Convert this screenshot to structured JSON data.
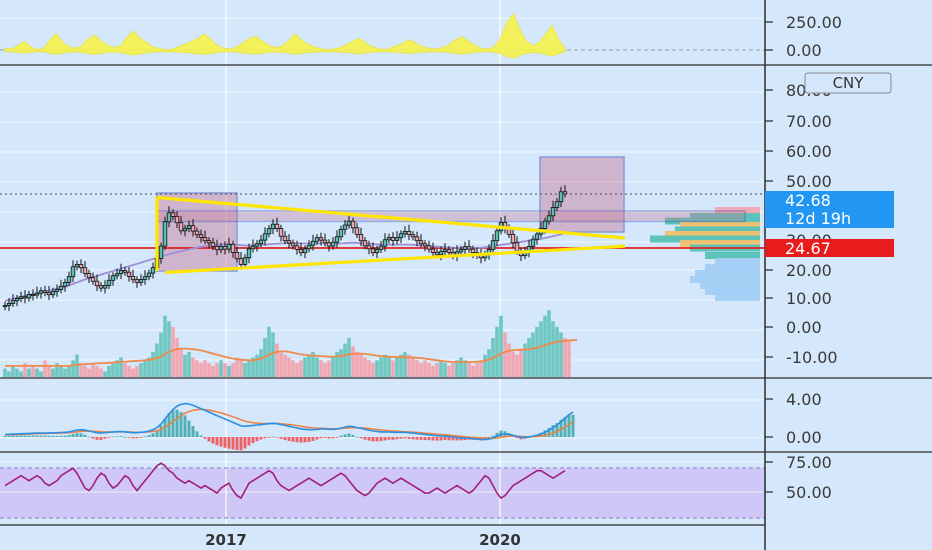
{
  "chart_data": [
    {
      "type": "area",
      "panel": "oscillator",
      "series": [
        {
          "values": [
            20,
            15,
            40,
            70,
            30,
            10,
            20,
            80,
            120,
            60,
            30,
            20,
            40,
            90,
            110,
            70,
            40,
            25,
            40,
            100,
            140,
            90,
            60,
            30,
            20,
            10,
            15,
            30,
            50,
            70,
            90,
            120,
            80,
            40,
            20,
            15,
            30,
            60,
            90,
            100,
            70,
            40,
            25,
            35,
            70,
            120,
            80,
            50,
            30,
            20,
            10,
            15,
            25,
            45,
            70,
            90,
            60,
            30,
            20,
            10,
            25,
            40,
            60,
            80,
            50,
            30,
            20,
            15,
            25,
            45,
            80,
            100,
            70,
            40,
            20,
            15,
            30,
            90,
            200,
            260,
            150,
            70,
            40,
            60,
            120,
            180,
            80,
            20
          ]
        }
      ],
      "y_ticks": [
        "250.00",
        "0.00"
      ],
      "ylim": [
        -60,
        320
      ],
      "color": "#f7f34b"
    },
    {
      "type": "candlestick",
      "panel": "price",
      "x_ticks": [
        "2017",
        "2020"
      ],
      "y_ticks": [
        "80.00",
        "70.00",
        "60.00",
        "50.00",
        "40.00",
        "30.00",
        "20.00",
        "10.00",
        "0.00",
        "-10.00"
      ],
      "ylim": [
        -17,
        83
      ],
      "currency": "CNY",
      "last_price": "42.68",
      "countdown": "12d 19h",
      "hline_price": 24.67,
      "hline_label": "24.67",
      "closes": [
        5.5,
        6.2,
        7.1,
        7.8,
        8.4,
        8.0,
        9.2,
        9.0,
        9.6,
        10.4,
        9.8,
        9.1,
        10.2,
        10.8,
        11.9,
        13.2,
        15.1,
        18.4,
        19.2,
        18.1,
        16.2,
        14.8,
        13.6,
        12.1,
        11.3,
        12.2,
        13.9,
        15.4,
        16.1,
        17.2,
        16.6,
        15.2,
        14.1,
        13.2,
        14.2,
        15.1,
        16.3,
        18.1,
        21.2,
        25.3,
        33.4,
        36.4,
        35.2,
        33.1,
        30.4,
        31.2,
        32.1,
        30.3,
        29.1,
        28.2,
        27.1,
        26.4,
        25.2,
        24.1,
        25.2,
        24.3,
        25.9,
        23.2,
        21.1,
        19.2,
        21.4,
        24.4,
        25.3,
        26.1,
        27.3,
        29.4,
        31.1,
        32.6,
        31.2,
        28.6,
        27.1,
        26.3,
        25.4,
        24.2,
        23.1,
        24.4,
        25.6,
        26.9,
        28.1,
        27.3,
        26.4,
        25.3,
        26.6,
        28.4,
        30.9,
        32.3,
        33.6,
        31.4,
        29.2,
        27.1,
        25.4,
        24.4,
        23.1,
        24.2,
        25.3,
        27.4,
        28.2,
        27.2,
        28.1,
        29.4,
        30.2,
        29.1,
        28.4,
        27.1,
        26.1,
        25.4,
        24.3,
        23.2,
        22.4,
        23.5,
        24.1,
        23.2,
        22.1,
        23.4,
        24.2,
        25.1,
        24.3,
        23.1,
        22.2,
        21.4,
        22.6,
        24.2,
        27.1,
        30.4,
        33.2,
        31.4,
        29.2,
        26.4,
        23.6,
        22.1,
        23.4,
        25.2,
        27.6,
        29.3,
        31.2,
        33.6,
        35.4,
        38.2,
        40.1,
        43.4,
        42.68
      ],
      "ma": [
        7,
        7.4,
        7.8,
        8.1,
        8.4,
        8.7,
        9,
        9.3,
        9.6,
        9.9,
        10.2,
        10.5,
        10.8,
        11.1,
        11.4,
        11.8,
        12.2,
        12.7,
        13.2,
        13.7,
        14.2,
        14.6,
        15.0,
        15.4,
        15.8,
        16.2,
        16.6,
        17.0,
        17.4,
        17.8,
        18.2,
        18.6,
        19.0,
        19.4,
        19.8,
        20.2,
        20.6,
        21.0,
        21.4,
        21.8,
        22.2,
        22.6,
        23.0,
        23.3,
        23.6,
        23.9,
        24.2,
        24.5,
        24.8,
        25.1,
        25.3,
        25.5,
        25.6,
        25.7,
        25.8,
        25.9,
        25.9,
        25.8,
        25.7,
        25.6,
        25.5,
        25.5,
        25.5,
        25.6,
        25.7,
        25.8,
        25.9,
        26.0,
        26.1,
        26.2,
        26.3,
        26.3,
        26.3,
        26.3,
        26.2,
        26.2,
        26.2,
        26.2,
        26.2,
        26.2,
        26.2,
        26.1,
        26.1,
        26.1,
        26.2,
        26.3,
        26.4,
        26.4,
        26.4,
        26.3,
        26.2,
        26.1,
        26.0,
        25.9,
        25.8,
        25.8,
        25.8,
        25.8,
        25.8,
        25.8,
        25.8,
        25.8,
        25.7,
        25.6,
        25.5,
        25.4,
        25.3,
        25.2,
        25.1,
        25.0,
        24.9,
        24.8,
        24.7,
        24.7,
        24.7,
        24.7,
        24.7,
        24.7,
        24.7,
        24.8,
        24.9,
        25.1,
        25.3,
        25.5,
        25.7,
        25.9,
        26.1,
        26.3,
        26.5,
        26.7,
        26.9,
        27.1,
        27.3,
        27.5,
        27.7,
        28.0,
        28.3,
        28.6,
        28.9,
        29.2,
        29.6
      ]
    },
    {
      "type": "bar",
      "panel": "volume",
      "values": [
        3,
        2,
        4,
        3,
        2,
        5,
        3,
        4,
        3,
        2,
        6,
        4,
        3,
        5,
        4,
        3,
        4,
        6,
        8,
        5,
        4,
        3,
        5,
        4,
        3,
        2,
        4,
        5,
        6,
        7,
        5,
        4,
        3,
        4,
        5,
        6,
        7,
        9,
        12,
        16,
        22,
        20,
        18,
        14,
        10,
        8,
        9,
        7,
        6,
        5,
        6,
        5,
        4,
        5,
        6,
        5,
        4,
        5,
        7,
        6,
        5,
        6,
        7,
        8,
        10,
        14,
        18,
        16,
        12,
        9,
        8,
        7,
        6,
        5,
        6,
        7,
        8,
        9,
        7,
        6,
        5,
        6,
        7,
        9,
        10,
        12,
        14,
        11,
        9,
        8,
        7,
        6,
        5,
        6,
        7,
        8,
        7,
        6,
        7,
        8,
        9,
        8,
        7,
        6,
        5,
        6,
        5,
        4,
        5,
        6,
        5,
        4,
        5,
        6,
        7,
        6,
        5,
        4,
        5,
        6,
        8,
        10,
        14,
        18,
        22,
        16,
        12,
        9,
        8,
        10,
        12,
        14,
        16,
        18,
        20,
        22,
        24,
        20,
        18,
        16,
        14,
        13
      ],
      "volume_ma": [
        4,
        4,
        4,
        4,
        4,
        4,
        4,
        4,
        4,
        4,
        4,
        4,
        4,
        4,
        4,
        4,
        4,
        4.2,
        4.4,
        4.5,
        4.6,
        4.7,
        4.8,
        4.9,
        5,
        5,
        5.1,
        5.2,
        5.3,
        5.4,
        5.5,
        5.6,
        5.7,
        5.8,
        5.9,
        6,
        6.2,
        6.4,
        6.8,
        7.4,
        8.2,
        9,
        9.6,
        10,
        10.2,
        10.2,
        10.1,
        10,
        9.8,
        9.5,
        9.2,
        8.8,
        8.4,
        8,
        7.6,
        7.2,
        6.9,
        6.6,
        6.4,
        6.2,
        6.1,
        6,
        6,
        6.2,
        6.6,
        7.2,
        8,
        8.6,
        9,
        9.2,
        9.2,
        9,
        8.7,
        8.4,
        8.1,
        7.9,
        7.8,
        7.7,
        7.6,
        7.5,
        7.4,
        7.3,
        7.3,
        7.4,
        7.6,
        7.8,
        8.1,
        8.3,
        8.4,
        8.4,
        8.3,
        8.1,
        7.9,
        7.7,
        7.5,
        7.4,
        7.3,
        7.2,
        7.1,
        7.1,
        7.1,
        7.1,
        7,
        6.9,
        6.8,
        6.6,
        6.4,
        6.2,
        6,
        5.8,
        5.6,
        5.5,
        5.4,
        5.4,
        5.4,
        5.4,
        5.4,
        5.4,
        5.5,
        5.6,
        5.8,
        6.2,
        6.8,
        7.6,
        8.4,
        9,
        9.4,
        9.6,
        9.7,
        9.8,
        9.9,
        10,
        10.2,
        10.5,
        10.9,
        11.4,
        11.9,
        12.3,
        12.6,
        12.8,
        13,
        13.1,
        13.2,
        13.2
      ]
    },
    {
      "type": "line",
      "panel": "macd",
      "y_ticks": [
        "4.00",
        "0.00"
      ],
      "ylim": [
        -1.2,
        5.6
      ],
      "macd": [
        0.3,
        0.32,
        0.34,
        0.36,
        0.38,
        0.4,
        0.42,
        0.44,
        0.45,
        0.46,
        0.47,
        0.48,
        0.49,
        0.5,
        0.52,
        0.55,
        0.6,
        0.7,
        0.8,
        0.85,
        0.8,
        0.7,
        0.6,
        0.5,
        0.45,
        0.5,
        0.55,
        0.6,
        0.62,
        0.64,
        0.6,
        0.55,
        0.5,
        0.5,
        0.55,
        0.6,
        0.7,
        0.85,
        1.1,
        1.5,
        2.1,
        2.7,
        3.2,
        3.6,
        3.8,
        3.9,
        3.85,
        3.7,
        3.5,
        3.3,
        3.1,
        2.9,
        2.7,
        2.5,
        2.3,
        2.1,
        1.9,
        1.7,
        1.5,
        1.3,
        1.25,
        1.3,
        1.35,
        1.4,
        1.45,
        1.5,
        1.55,
        1.6,
        1.55,
        1.45,
        1.35,
        1.25,
        1.15,
        1.05,
        0.95,
        0.9,
        0.85,
        0.85,
        0.9,
        0.95,
        0.95,
        0.9,
        0.9,
        0.95,
        1.05,
        1.15,
        1.25,
        1.2,
        1.1,
        1,
        0.9,
        0.8,
        0.7,
        0.65,
        0.6,
        0.6,
        0.6,
        0.55,
        0.55,
        0.55,
        0.55,
        0.5,
        0.45,
        0.4,
        0.35,
        0.3,
        0.25,
        0.2,
        0.15,
        0.12,
        0.1,
        0.05,
        0,
        -0.05,
        -0.1,
        -0.12,
        -0.15,
        -0.2,
        -0.25,
        -0.3,
        -0.3,
        -0.25,
        -0.1,
        0.1,
        0.3,
        0.35,
        0.3,
        0.2,
        0.05,
        -0.05,
        -0.05,
        0,
        0.1,
        0.2,
        0.35,
        0.55,
        0.8,
        1.1,
        1.4,
        1.8,
        2.2,
        2.6,
        2.9
      ],
      "signal": [
        0.25,
        0.26,
        0.27,
        0.29,
        0.3,
        0.32,
        0.34,
        0.36,
        0.37,
        0.39,
        0.4,
        0.42,
        0.43,
        0.44,
        0.46,
        0.48,
        0.5,
        0.54,
        0.6,
        0.65,
        0.68,
        0.69,
        0.68,
        0.65,
        0.61,
        0.59,
        0.58,
        0.58,
        0.59,
        0.6,
        0.6,
        0.59,
        0.57,
        0.56,
        0.56,
        0.57,
        0.6,
        0.65,
        0.74,
        0.89,
        1.13,
        1.44,
        1.79,
        2.15,
        2.48,
        2.76,
        2.98,
        3.12,
        3.2,
        3.22,
        3.2,
        3.14,
        3.05,
        2.94,
        2.81,
        2.67,
        2.52,
        2.36,
        2.19,
        2.01,
        1.86,
        1.75,
        1.67,
        1.62,
        1.58,
        1.57,
        1.57,
        1.58,
        1.57,
        1.55,
        1.51,
        1.46,
        1.4,
        1.33,
        1.25,
        1.18,
        1.11,
        1.06,
        1.03,
        1.01,
        1,
        0.98,
        0.97,
        0.96,
        0.98,
        1.01,
        1.06,
        1.09,
        1.09,
        1.07,
        1.04,
        0.99,
        0.93,
        0.88,
        0.82,
        0.78,
        0.74,
        0.7,
        0.67,
        0.64,
        0.62,
        0.6,
        0.57,
        0.54,
        0.5,
        0.46,
        0.42,
        0.38,
        0.34,
        0.3,
        0.26,
        0.22,
        0.18,
        0.13,
        0.08,
        0.04,
        -0.01,
        -0.05,
        -0.09,
        -0.13,
        -0.17,
        -0.19,
        -0.17,
        -0.12,
        -0.04,
        0.04,
        0.09,
        0.11,
        0.1,
        0.07,
        0.04,
        0.03,
        0.04,
        0.07,
        0.12,
        0.2,
        0.32,
        0.47,
        0.66,
        0.89,
        1.15,
        1.44,
        1.73
      ]
    },
    {
      "type": "line",
      "panel": "rsi",
      "y_ticks": [
        "75.00",
        "50.00"
      ],
      "ylim": [
        30,
        78
      ],
      "band": [
        30,
        70
      ],
      "values": [
        56,
        58,
        60,
        62,
        64,
        62,
        60,
        62,
        64,
        62,
        58,
        56,
        58,
        60,
        64,
        66,
        68,
        70,
        66,
        60,
        54,
        52,
        56,
        62,
        66,
        64,
        58,
        54,
        56,
        60,
        64,
        62,
        56,
        52,
        56,
        60,
        64,
        68,
        72,
        74,
        72,
        68,
        66,
        62,
        60,
        58,
        60,
        58,
        56,
        54,
        56,
        54,
        52,
        50,
        54,
        56,
        58,
        52,
        48,
        46,
        52,
        58,
        60,
        62,
        64,
        66,
        68,
        66,
        60,
        56,
        54,
        52,
        54,
        56,
        58,
        60,
        62,
        60,
        58,
        56,
        58,
        60,
        62,
        64,
        66,
        64,
        60,
        56,
        52,
        50,
        48,
        50,
        54,
        58,
        60,
        62,
        60,
        58,
        60,
        62,
        60,
        58,
        56,
        54,
        52,
        50,
        50,
        52,
        54,
        52,
        50,
        52,
        54,
        56,
        54,
        52,
        50,
        52,
        56,
        60,
        64,
        62,
        56,
        50,
        46,
        48,
        52,
        56,
        58,
        60,
        62,
        64,
        66,
        68,
        68,
        66,
        64,
        62,
        64,
        66,
        68
      ]
    }
  ]
}
